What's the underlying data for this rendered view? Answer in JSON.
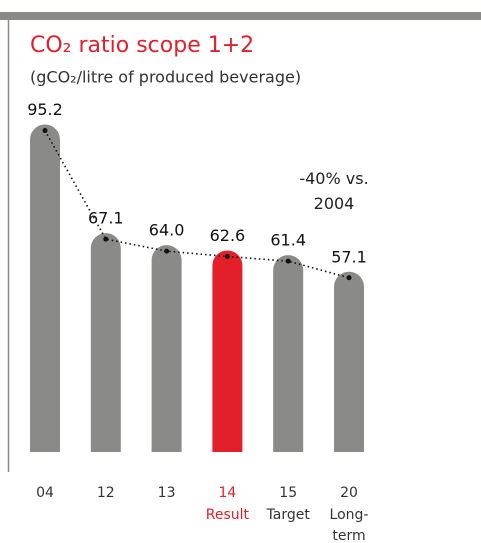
{
  "chart_data": {
    "type": "bar",
    "title": "CO₂ ratio scope 1+2",
    "subtitle": "(gCO₂/litre of produced beverage)",
    "annotation": "-40% vs. 2004",
    "categories": [
      "04",
      "12",
      "13",
      "14",
      "15",
      "20"
    ],
    "category_notes": [
      null,
      null,
      null,
      "Result",
      "Target",
      "Long-term Goal"
    ],
    "values": [
      95.2,
      67.1,
      64.0,
      62.6,
      61.4,
      57.1
    ],
    "value_labels": [
      "95.2",
      "67.1",
      "64.0",
      "62.6",
      "61.4",
      "57.1"
    ],
    "colors": [
      "#8a8a88",
      "#8a8a88",
      "#8a8a88",
      "#e3202a",
      "#8a8a88",
      "#8a8a88"
    ],
    "title_color": "#e3202a",
    "ylim": [
      12,
      100
    ],
    "trend_line": true
  }
}
